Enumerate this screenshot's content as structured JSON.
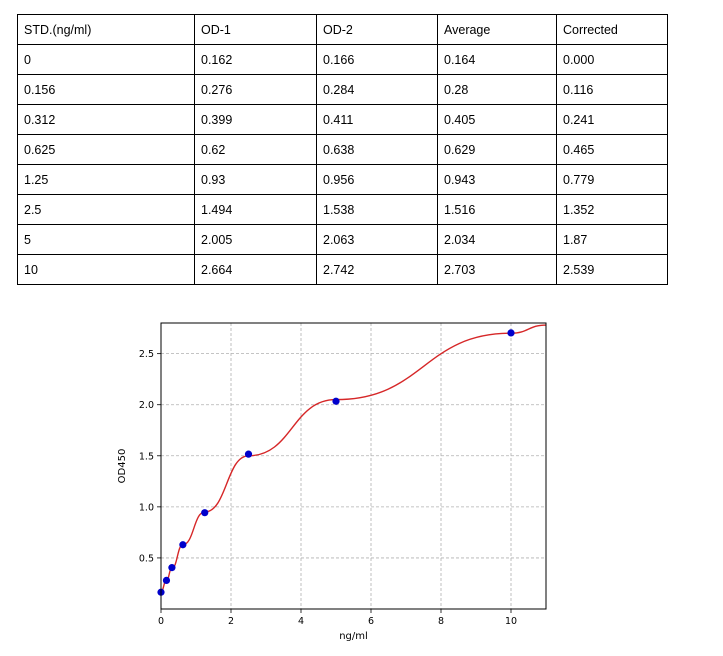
{
  "table": {
    "headers": [
      "STD.(ng/ml)",
      "OD-1",
      "OD-2",
      "Average",
      "Corrected"
    ],
    "rows": [
      [
        "0",
        "0.162",
        "0.166",
        "0.164",
        "0.000"
      ],
      [
        "0.156",
        "0.276",
        "0.284",
        "0.28",
        "0.116"
      ],
      [
        "0.312",
        "0.399",
        "0.411",
        "0.405",
        "0.241"
      ],
      [
        "0.625",
        "0.62",
        "0.638",
        "0.629",
        "0.465"
      ],
      [
        "1.25",
        "0.93",
        "0.956",
        "0.943",
        "0.779"
      ],
      [
        "2.5",
        "1.494",
        "1.538",
        "1.516",
        "1.352"
      ],
      [
        "5",
        "2.005",
        "2.063",
        "2.034",
        "1.87"
      ],
      [
        "10",
        "2.664",
        "2.742",
        "2.703",
        "2.539"
      ]
    ]
  },
  "chart_data": {
    "type": "scatter",
    "title": "",
    "xlabel": "ng/ml",
    "ylabel": "OD450",
    "xlim": [
      0,
      11
    ],
    "ylim": [
      0,
      2.8
    ],
    "xticks": [
      0,
      2,
      4,
      6,
      8,
      10
    ],
    "yticks": [
      0.5,
      1.0,
      1.5,
      2.0,
      2.5
    ],
    "xtick_labels": [
      "0",
      "2",
      "4",
      "6",
      "8",
      "10"
    ],
    "ytick_labels": [
      "0.5",
      "1.0",
      "1.5",
      "2.0",
      "2.5"
    ],
    "grid": true,
    "points": {
      "x": [
        0,
        0.156,
        0.312,
        0.625,
        1.25,
        2.5,
        5,
        10
      ],
      "y": [
        0.164,
        0.28,
        0.405,
        0.629,
        0.943,
        1.516,
        2.034,
        2.703
      ]
    },
    "fit_curve": {
      "x": [
        0,
        0.156,
        0.312,
        0.625,
        1.25,
        2.5,
        5,
        10,
        11
      ],
      "y": [
        0.17,
        0.28,
        0.4,
        0.63,
        0.95,
        1.5,
        2.05,
        2.7,
        2.78
      ]
    },
    "colors": {
      "points": "#0000cc",
      "curve": "#d62728",
      "grid": "#b0b0b0"
    }
  }
}
